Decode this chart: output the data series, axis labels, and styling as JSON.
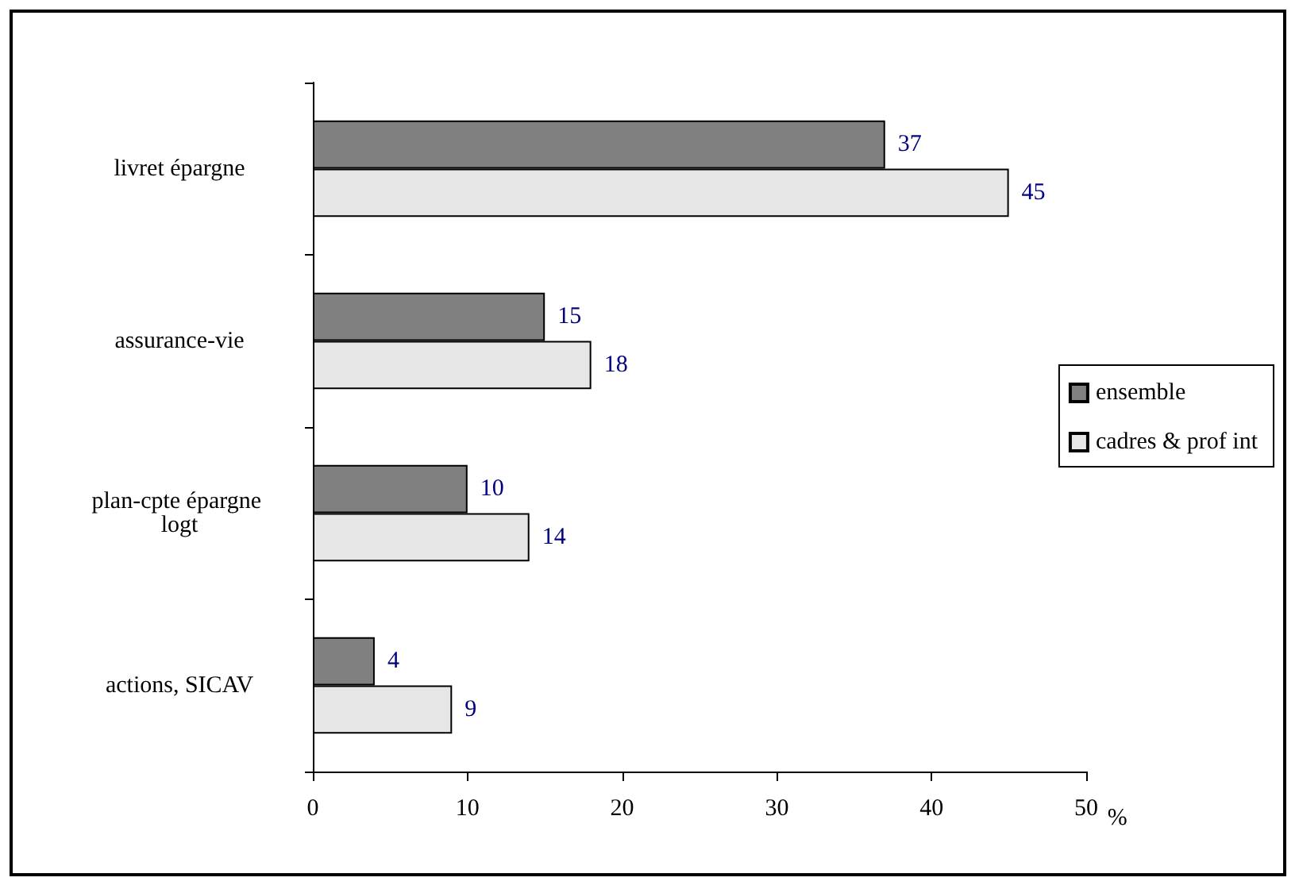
{
  "chart_data": {
    "type": "bar",
    "orientation": "horizontal",
    "xlabel": "%",
    "categories": [
      "livret épargne",
      "assurance-vie",
      "plan-cpte épargne logt",
      "actions, SICAV"
    ],
    "series": [
      {
        "name": "ensemble",
        "color": "#808080",
        "values": [
          37,
          15,
          10,
          4
        ]
      },
      {
        "name": "cadres & prof int",
        "color": "#e6e6e6",
        "values": [
          45,
          18,
          14,
          9
        ]
      }
    ],
    "xlim": [
      0,
      50
    ],
    "xticks": [
      0,
      10,
      20,
      30,
      40,
      50
    ],
    "data_labels": true,
    "grid": false,
    "legend": "right"
  }
}
